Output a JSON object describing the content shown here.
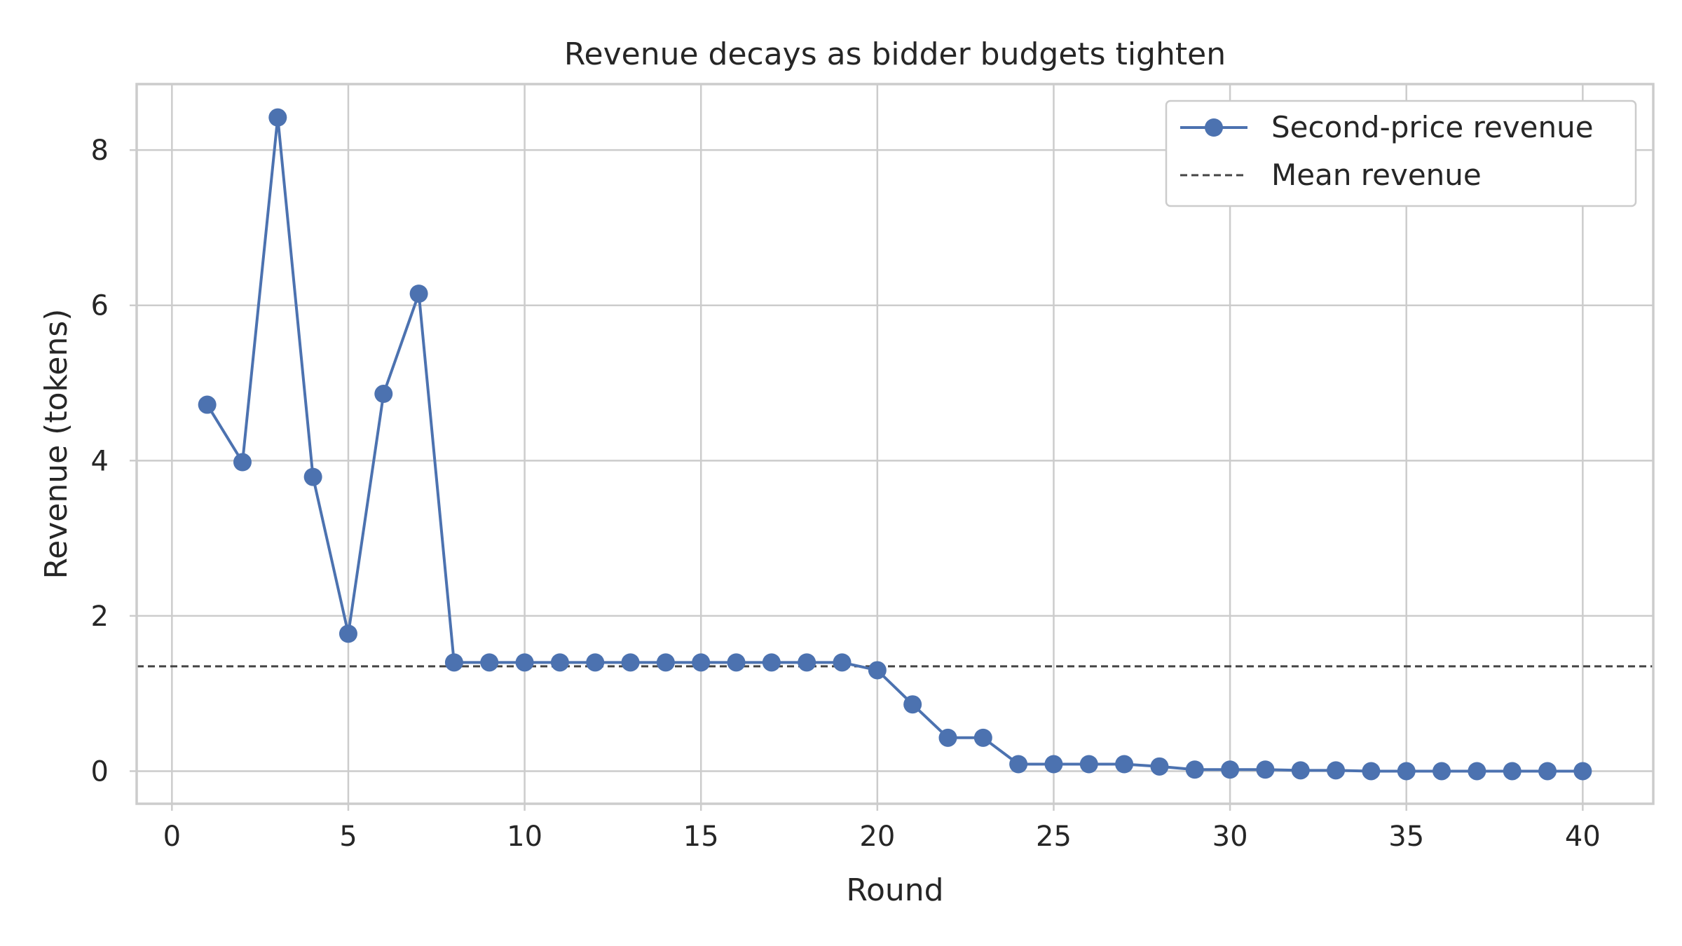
{
  "chart_data": {
    "type": "line",
    "title": "Revenue decays as bidder budgets tighten",
    "xlabel": "Round",
    "ylabel": "Revenue (tokens)",
    "xlim": [
      -1,
      42
    ],
    "ylim": [
      -0.42,
      8.85
    ],
    "xticks": [
      0,
      5,
      10,
      15,
      20,
      25,
      30,
      35,
      40
    ],
    "yticks": [
      0,
      2,
      4,
      6,
      8
    ],
    "grid": true,
    "legend_position": "top-right",
    "series": [
      {
        "name": "Second-price revenue",
        "color": "#4c72b0",
        "style": "solid-with-markers",
        "x": [
          1,
          2,
          3,
          4,
          5,
          6,
          7,
          8,
          9,
          10,
          11,
          12,
          13,
          14,
          15,
          16,
          17,
          18,
          19,
          20,
          21,
          22,
          23,
          24,
          25,
          26,
          27,
          28,
          29,
          30,
          31,
          32,
          33,
          34,
          35,
          36,
          37,
          38,
          39,
          40
        ],
        "values": [
          4.72,
          3.98,
          8.42,
          3.79,
          1.77,
          4.86,
          6.15,
          1.4,
          1.4,
          1.4,
          1.4,
          1.4,
          1.4,
          1.4,
          1.4,
          1.4,
          1.4,
          1.4,
          1.4,
          1.3,
          0.86,
          0.43,
          0.43,
          0.09,
          0.09,
          0.09,
          0.09,
          0.06,
          0.02,
          0.02,
          0.02,
          0.01,
          0.01,
          0.0,
          0.0,
          0.0,
          0.0,
          0.0,
          0.0,
          0.0
        ]
      },
      {
        "name": "Mean revenue",
        "color": "#444444",
        "style": "dashed",
        "value": 1.35
      }
    ]
  }
}
